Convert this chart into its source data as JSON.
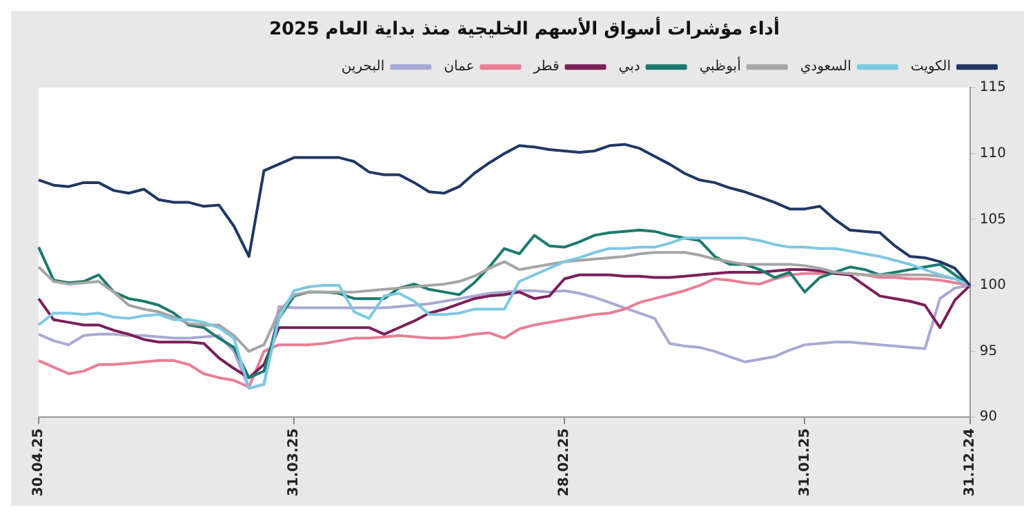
{
  "chart_data": {
    "type": "line",
    "title": "أداء مؤشرات أسواق الأسهم الخليجية منذ بداية العام 2025",
    "categories": [
      "30.04.25",
      null,
      null,
      null,
      null,
      null,
      null,
      null,
      null,
      null,
      null,
      null,
      null,
      null,
      null,
      null,
      null,
      "31.03.25",
      null,
      null,
      null,
      null,
      null,
      null,
      null,
      null,
      null,
      null,
      null,
      null,
      null,
      null,
      null,
      null,
      null,
      "28.02.25",
      null,
      null,
      null,
      null,
      null,
      null,
      null,
      null,
      null,
      null,
      null,
      null,
      null,
      null,
      null,
      "31.01.25",
      null,
      null,
      null,
      null,
      null,
      null,
      null,
      null,
      null,
      null,
      "31.12.24"
    ],
    "series": [
      {
        "name": "الكويت",
        "color": "#1f3864",
        "values": [
          108.0,
          107.6,
          107.5,
          107.8,
          107.8,
          107.2,
          107.0,
          107.3,
          106.5,
          106.3,
          106.3,
          106.0,
          106.1,
          104.5,
          102.2,
          108.7,
          109.2,
          109.7,
          109.7,
          109.7,
          109.7,
          109.4,
          108.6,
          108.4,
          108.4,
          107.8,
          107.1,
          107.0,
          107.5,
          108.5,
          109.3,
          110.0,
          110.6,
          110.5,
          110.3,
          110.2,
          110.1,
          110.2,
          110.6,
          110.7,
          110.4,
          109.8,
          109.2,
          108.5,
          108.0,
          107.8,
          107.4,
          107.1,
          106.7,
          106.3,
          105.8,
          105.8,
          106.0,
          105.0,
          104.2,
          104.1,
          104.0,
          103.0,
          102.2,
          102.1,
          101.8,
          101.3,
          100
        ]
      },
      {
        "name": "السعودي",
        "color": "#7ec8e3",
        "values": [
          97.0,
          97.9,
          97.9,
          97.8,
          97.9,
          97.6,
          97.5,
          97.7,
          97.8,
          97.4,
          97.4,
          97.2,
          96.8,
          96.0,
          92.2,
          92.5,
          97.5,
          99.6,
          99.9,
          100.0,
          100.0,
          98.0,
          97.5,
          99.2,
          99.4,
          98.8,
          97.8,
          97.8,
          97.9,
          98.2,
          98.2,
          98.2,
          100.3,
          100.8,
          101.3,
          101.8,
          102.1,
          102.5,
          102.8,
          102.8,
          102.9,
          102.9,
          103.2,
          103.6,
          103.6,
          103.6,
          103.6,
          103.6,
          103.4,
          103.1,
          102.9,
          102.9,
          102.8,
          102.8,
          102.6,
          102.4,
          102.2,
          101.9,
          101.6,
          101.2,
          100.8,
          100.5,
          100
        ]
      },
      {
        "name": "أبوظبي",
        "color": "#a5a5a5",
        "values": [
          101.4,
          100.3,
          100.1,
          100.2,
          100.3,
          99.5,
          98.5,
          98.2,
          98.0,
          97.6,
          97.1,
          97.0,
          97.0,
          96.2,
          95.0,
          95.5,
          98.0,
          99.3,
          99.5,
          99.5,
          99.5,
          99.5,
          99.6,
          99.7,
          99.8,
          99.9,
          100.0,
          100.1,
          100.3,
          100.7,
          101.3,
          101.8,
          101.2,
          101.4,
          101.6,
          101.8,
          101.9,
          102.0,
          102.1,
          102.2,
          102.4,
          102.5,
          102.5,
          102.5,
          102.3,
          102.0,
          101.8,
          101.6,
          101.6,
          101.6,
          101.6,
          101.5,
          101.3,
          101.0,
          100.9,
          100.8,
          100.8,
          100.8,
          100.8,
          100.8,
          100.7,
          100.5,
          100
        ]
      },
      {
        "name": "دبي",
        "color": "#1b7a6e",
        "values": [
          102.9,
          100.4,
          100.2,
          100.3,
          100.8,
          99.5,
          99.0,
          98.8,
          98.5,
          97.9,
          97.0,
          96.8,
          96.0,
          95.3,
          93.0,
          93.5,
          97.5,
          99.2,
          99.5,
          99.5,
          99.4,
          99.0,
          99.0,
          99.0,
          99.8,
          100.1,
          99.7,
          99.5,
          99.3,
          100.2,
          101.4,
          102.8,
          102.4,
          103.8,
          103.0,
          102.9,
          103.3,
          103.8,
          104.0,
          104.1,
          104.2,
          104.1,
          103.8,
          103.6,
          103.4,
          102.2,
          101.6,
          101.6,
          101.2,
          100.6,
          101.0,
          99.5,
          100.6,
          101.0,
          101.4,
          101.2,
          100.8,
          101.0,
          101.2,
          101.4,
          101.6,
          100.8,
          100
        ]
      },
      {
        "name": "قطر",
        "color": "#7b1f5a",
        "values": [
          99.0,
          97.4,
          97.2,
          97.0,
          97.0,
          96.6,
          96.3,
          95.9,
          95.7,
          95.7,
          95.7,
          95.6,
          94.5,
          93.7,
          93.0,
          94.0,
          96.8,
          96.8,
          96.8,
          96.8,
          96.8,
          96.8,
          96.8,
          96.3,
          96.8,
          97.3,
          97.9,
          98.2,
          98.6,
          99.0,
          99.2,
          99.3,
          99.5,
          99.0,
          99.2,
          100.5,
          100.8,
          100.8,
          100.8,
          100.7,
          100.7,
          100.6,
          100.6,
          100.7,
          100.8,
          100.9,
          101.0,
          101.0,
          101.0,
          101.1,
          101.2,
          101.2,
          101.1,
          100.9,
          100.8,
          100.0,
          99.2,
          99.0,
          98.8,
          98.5,
          96.8,
          98.9,
          100
        ]
      },
      {
        "name": "عمان",
        "color": "#e87f95",
        "values": [
          94.3,
          93.8,
          93.3,
          93.5,
          94.0,
          94.0,
          94.1,
          94.2,
          94.3,
          94.3,
          94.0,
          93.3,
          93.0,
          92.8,
          92.3,
          95.0,
          95.5,
          95.5,
          95.5,
          95.6,
          95.8,
          96.0,
          96.0,
          96.1,
          96.2,
          96.1,
          96.0,
          96.0,
          96.1,
          96.3,
          96.4,
          96.0,
          96.7,
          97.0,
          97.2,
          97.4,
          97.6,
          97.8,
          97.9,
          98.2,
          98.7,
          99.0,
          99.3,
          99.6,
          100.0,
          100.5,
          100.4,
          100.2,
          100.1,
          100.5,
          100.8,
          100.9,
          100.9,
          100.9,
          100.9,
          100.8,
          100.6,
          100.6,
          100.5,
          100.5,
          100.4,
          100.2,
          100
        ]
      },
      {
        "name": "البحرين",
        "color": "#a9a9d6",
        "values": [
          96.3,
          95.8,
          95.5,
          96.2,
          96.3,
          96.3,
          96.2,
          96.2,
          96.1,
          96.0,
          96.0,
          96.1,
          96.2,
          95.0,
          92.2,
          92.5,
          98.4,
          98.3,
          98.3,
          98.3,
          98.3,
          98.3,
          98.3,
          98.3,
          98.4,
          98.5,
          98.6,
          98.8,
          99.0,
          99.2,
          99.4,
          99.5,
          99.6,
          99.6,
          99.5,
          99.6,
          99.4,
          99.1,
          98.7,
          98.3,
          97.9,
          97.5,
          95.6,
          95.4,
          95.3,
          95.0,
          94.6,
          94.2,
          94.4,
          94.6,
          95.1,
          95.5,
          95.6,
          95.7,
          95.7,
          95.6,
          95.5,
          95.4,
          95.3,
          95.2,
          99.0,
          99.8,
          100
        ]
      }
    ],
    "ylim": [
      90,
      115
    ],
    "yticks": [
      90,
      95,
      100,
      105,
      110,
      115
    ],
    "grid": false,
    "legend": "top right",
    "marker": "none",
    "line_style": "solid"
  }
}
